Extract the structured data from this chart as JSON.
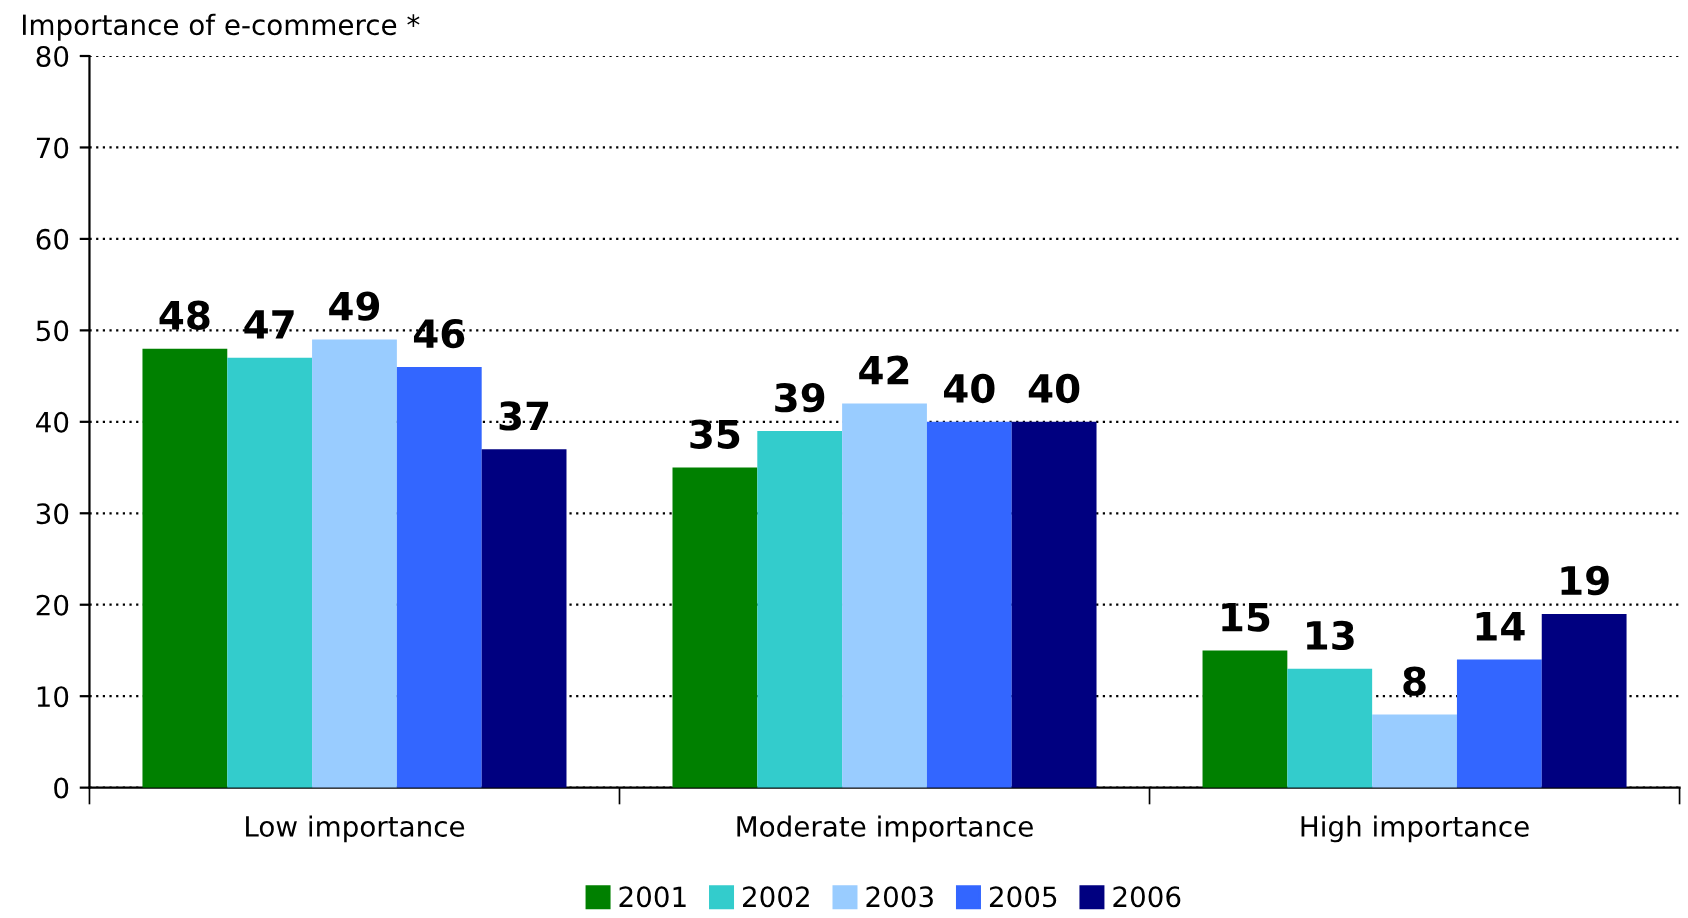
{
  "chart_data": {
    "type": "bar",
    "ylabel": "Importance of e-commerce *",
    "categories": [
      "Low importance",
      "Moderate importance",
      "High importance"
    ],
    "series": [
      {
        "name": "2001",
        "color": "#008000",
        "values": [
          48,
          35,
          15
        ]
      },
      {
        "name": "2002",
        "color": "#33cccc",
        "values": [
          47,
          39,
          13
        ]
      },
      {
        "name": "2003",
        "color": "#99ccff",
        "values": [
          49,
          42,
          8
        ]
      },
      {
        "name": "2005",
        "color": "#3366ff",
        "values": [
          46,
          40,
          14
        ]
      },
      {
        "name": "2006",
        "color": "#000080",
        "values": [
          37,
          40,
          19
        ]
      }
    ],
    "ylim": [
      0,
      80
    ],
    "yticks": [
      0,
      10,
      20,
      30,
      40,
      50,
      60,
      70,
      80
    ],
    "grid": "y",
    "legend": "bottom",
    "data_labels": true
  }
}
